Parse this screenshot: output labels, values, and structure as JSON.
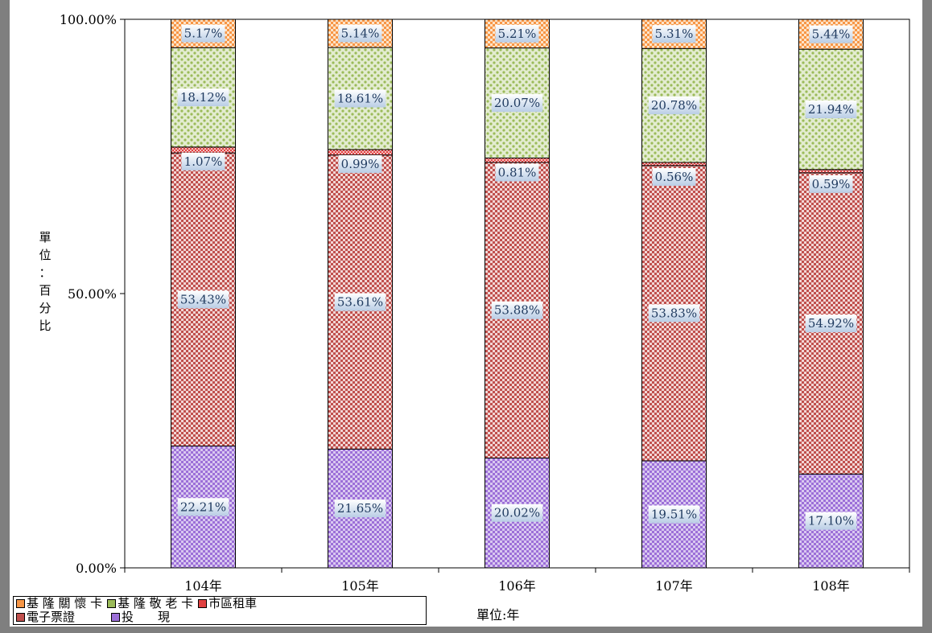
{
  "chart_data": {
    "type": "bar",
    "stacked": true,
    "categories": [
      "104年",
      "105年",
      "106年",
      "107年",
      "108年"
    ],
    "series": [
      {
        "name": "投　　現",
        "values": [
          22.21,
          21.65,
          20.02,
          19.51,
          17.1
        ],
        "labels": [
          "22.21%",
          "21.65%",
          "20.02%",
          "19.51%",
          "17.10%"
        ],
        "color": "#9c6fd8"
      },
      {
        "name": "電子票證",
        "values": [
          53.43,
          53.61,
          53.88,
          53.83,
          54.92
        ],
        "labels": [
          "53.43%",
          "53.61%",
          "53.88%",
          "53.83%",
          "54.92%"
        ],
        "color": "#c0504d"
      },
      {
        "name": "市區租車",
        "values": [
          1.07,
          0.99,
          0.81,
          0.56,
          0.59
        ],
        "labels": [
          "1.07%",
          "0.99%",
          "0.81%",
          "0.56%",
          "0.59%"
        ],
        "color": "#e04040"
      },
      {
        "name": "基 隆 敬 老 卡",
        "values": [
          18.12,
          18.61,
          20.07,
          20.78,
          21.94
        ],
        "labels": [
          "18.12%",
          "18.61%",
          "20.07%",
          "20.78%",
          "21.94%"
        ],
        "color": "#9bbb59"
      },
      {
        "name": "基 隆 關 懷 卡",
        "values": [
          5.17,
          5.14,
          5.21,
          5.31,
          5.44
        ],
        "labels": [
          "5.17%",
          "5.14%",
          "5.21%",
          "5.31%",
          "5.44%"
        ],
        "color": "#f79646"
      }
    ],
    "ylim": [
      0,
      100
    ],
    "yticks": [
      "0.00%",
      "50.00%",
      "100.00%"
    ],
    "ylabel": "單位:百分比",
    "xlabel": "單位:年",
    "legend_position": "bottom-left"
  }
}
